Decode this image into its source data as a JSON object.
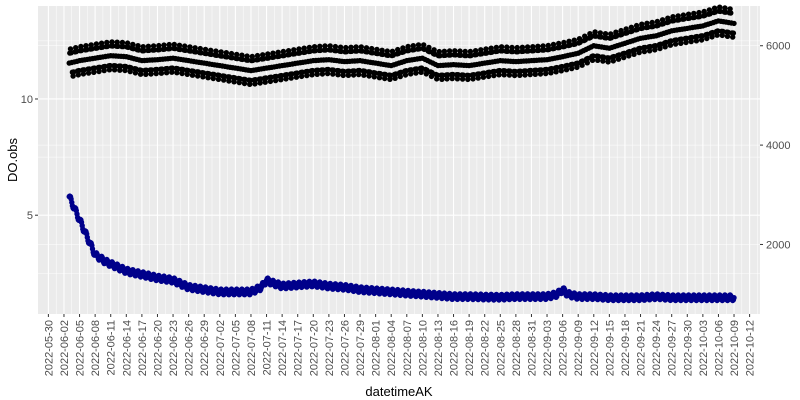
{
  "chart_data": {
    "type": "scatter",
    "xlabel": "datetimeAK",
    "ylabel": "DO.obs",
    "y2label": "",
    "xlim": [
      "2022-05-28",
      "2022-10-14"
    ],
    "ylim": [
      0.75,
      14.0
    ],
    "y2lim": [
      600,
      6800
    ],
    "grid": true,
    "legend": "none",
    "background": "#EBEBEB",
    "gridColor": "#FFFFFF",
    "x_ticks": [
      "2022-05-30",
      "2022-06-02",
      "2022-06-05",
      "2022-06-08",
      "2022-06-11",
      "2022-06-14",
      "2022-06-17",
      "2022-06-20",
      "2022-06-23",
      "2022-06-26",
      "2022-06-29",
      "2022-07-02",
      "2022-07-05",
      "2022-07-08",
      "2022-07-11",
      "2022-07-14",
      "2022-07-17",
      "2022-07-20",
      "2022-07-23",
      "2022-07-26",
      "2022-07-29",
      "2022-08-01",
      "2022-08-04",
      "2022-08-07",
      "2022-08-10",
      "2022-08-13",
      "2022-08-16",
      "2022-08-19",
      "2022-08-22",
      "2022-08-25",
      "2022-08-28",
      "2022-08-31",
      "2022-09-03",
      "2022-09-06",
      "2022-09-09",
      "2022-09-12",
      "2022-09-15",
      "2022-09-18",
      "2022-09-21",
      "2022-09-24",
      "2022-09-27",
      "2022-09-30",
      "2022-10-03",
      "2022-10-06",
      "2022-10-09",
      "2022-10-12"
    ],
    "y_ticks": [
      {
        "value": 5,
        "label": "5"
      },
      {
        "value": 10,
        "label": "10"
      }
    ],
    "y2_ticks": [
      {
        "value": 2000,
        "label": "2000"
      },
      {
        "value": 4000,
        "label": "4000"
      },
      {
        "value": 6000,
        "label": "6000"
      }
    ],
    "series": [
      {
        "color": "#000000",
        "axis": "right",
        "daily_swing": 280,
        "x": [
          "2022-06-03",
          "2022-06-05",
          "2022-06-08",
          "2022-06-11",
          "2022-06-14",
          "2022-06-17",
          "2022-06-20",
          "2022-06-23",
          "2022-06-26",
          "2022-06-29",
          "2022-07-02",
          "2022-07-05",
          "2022-07-08",
          "2022-07-11",
          "2022-07-14",
          "2022-07-17",
          "2022-07-20",
          "2022-07-23",
          "2022-07-26",
          "2022-07-29",
          "2022-08-01",
          "2022-08-04",
          "2022-08-07",
          "2022-08-10",
          "2022-08-13",
          "2022-08-16",
          "2022-08-19",
          "2022-08-22",
          "2022-08-25",
          "2022-08-28",
          "2022-08-31",
          "2022-09-03",
          "2022-09-06",
          "2022-09-09",
          "2022-09-12",
          "2022-09-15",
          "2022-09-18",
          "2022-09-21",
          "2022-09-24",
          "2022-09-27",
          "2022-09-30",
          "2022-10-03",
          "2022-10-06",
          "2022-10-09"
        ],
        "y": [
          5650,
          5700,
          5750,
          5800,
          5780,
          5700,
          5720,
          5750,
          5700,
          5650,
          5600,
          5550,
          5500,
          5550,
          5600,
          5650,
          5700,
          5720,
          5680,
          5700,
          5650,
          5600,
          5700,
          5750,
          5600,
          5620,
          5600,
          5650,
          5700,
          5680,
          5700,
          5720,
          5780,
          5850,
          6000,
          5950,
          6050,
          6150,
          6200,
          6300,
          6350,
          6400,
          6500,
          6450
        ]
      },
      {
        "color": "#00008B",
        "axis": "left",
        "daily_swing": 0.12,
        "x": [
          "2022-06-03",
          "2022-06-04",
          "2022-06-05",
          "2022-06-06",
          "2022-06-07",
          "2022-06-08",
          "2022-06-10",
          "2022-06-12",
          "2022-06-14",
          "2022-06-16",
          "2022-06-18",
          "2022-06-20",
          "2022-06-23",
          "2022-06-26",
          "2022-06-29",
          "2022-07-02",
          "2022-07-05",
          "2022-07-08",
          "2022-07-10",
          "2022-07-11",
          "2022-07-12",
          "2022-07-14",
          "2022-07-17",
          "2022-07-20",
          "2022-07-23",
          "2022-07-26",
          "2022-07-29",
          "2022-08-01",
          "2022-08-04",
          "2022-08-07",
          "2022-08-10",
          "2022-08-13",
          "2022-08-16",
          "2022-08-19",
          "2022-08-22",
          "2022-08-25",
          "2022-08-28",
          "2022-08-31",
          "2022-09-03",
          "2022-09-05",
          "2022-09-06",
          "2022-09-07",
          "2022-09-09",
          "2022-09-12",
          "2022-09-15",
          "2022-09-18",
          "2022-09-21",
          "2022-09-24",
          "2022-09-27",
          "2022-09-30",
          "2022-10-03",
          "2022-10-06",
          "2022-10-09"
        ],
        "y": [
          5.8,
          5.3,
          4.8,
          4.3,
          3.8,
          3.3,
          3.0,
          2.8,
          2.6,
          2.5,
          2.4,
          2.3,
          2.2,
          1.9,
          1.8,
          1.7,
          1.7,
          1.7,
          1.9,
          2.2,
          2.1,
          1.95,
          2.0,
          2.05,
          1.95,
          1.9,
          1.8,
          1.75,
          1.7,
          1.65,
          1.6,
          1.55,
          1.5,
          1.5,
          1.48,
          1.47,
          1.5,
          1.5,
          1.5,
          1.6,
          1.8,
          1.6,
          1.5,
          1.5,
          1.45,
          1.45,
          1.45,
          1.5,
          1.45,
          1.45,
          1.45,
          1.45,
          1.45
        ]
      }
    ]
  }
}
